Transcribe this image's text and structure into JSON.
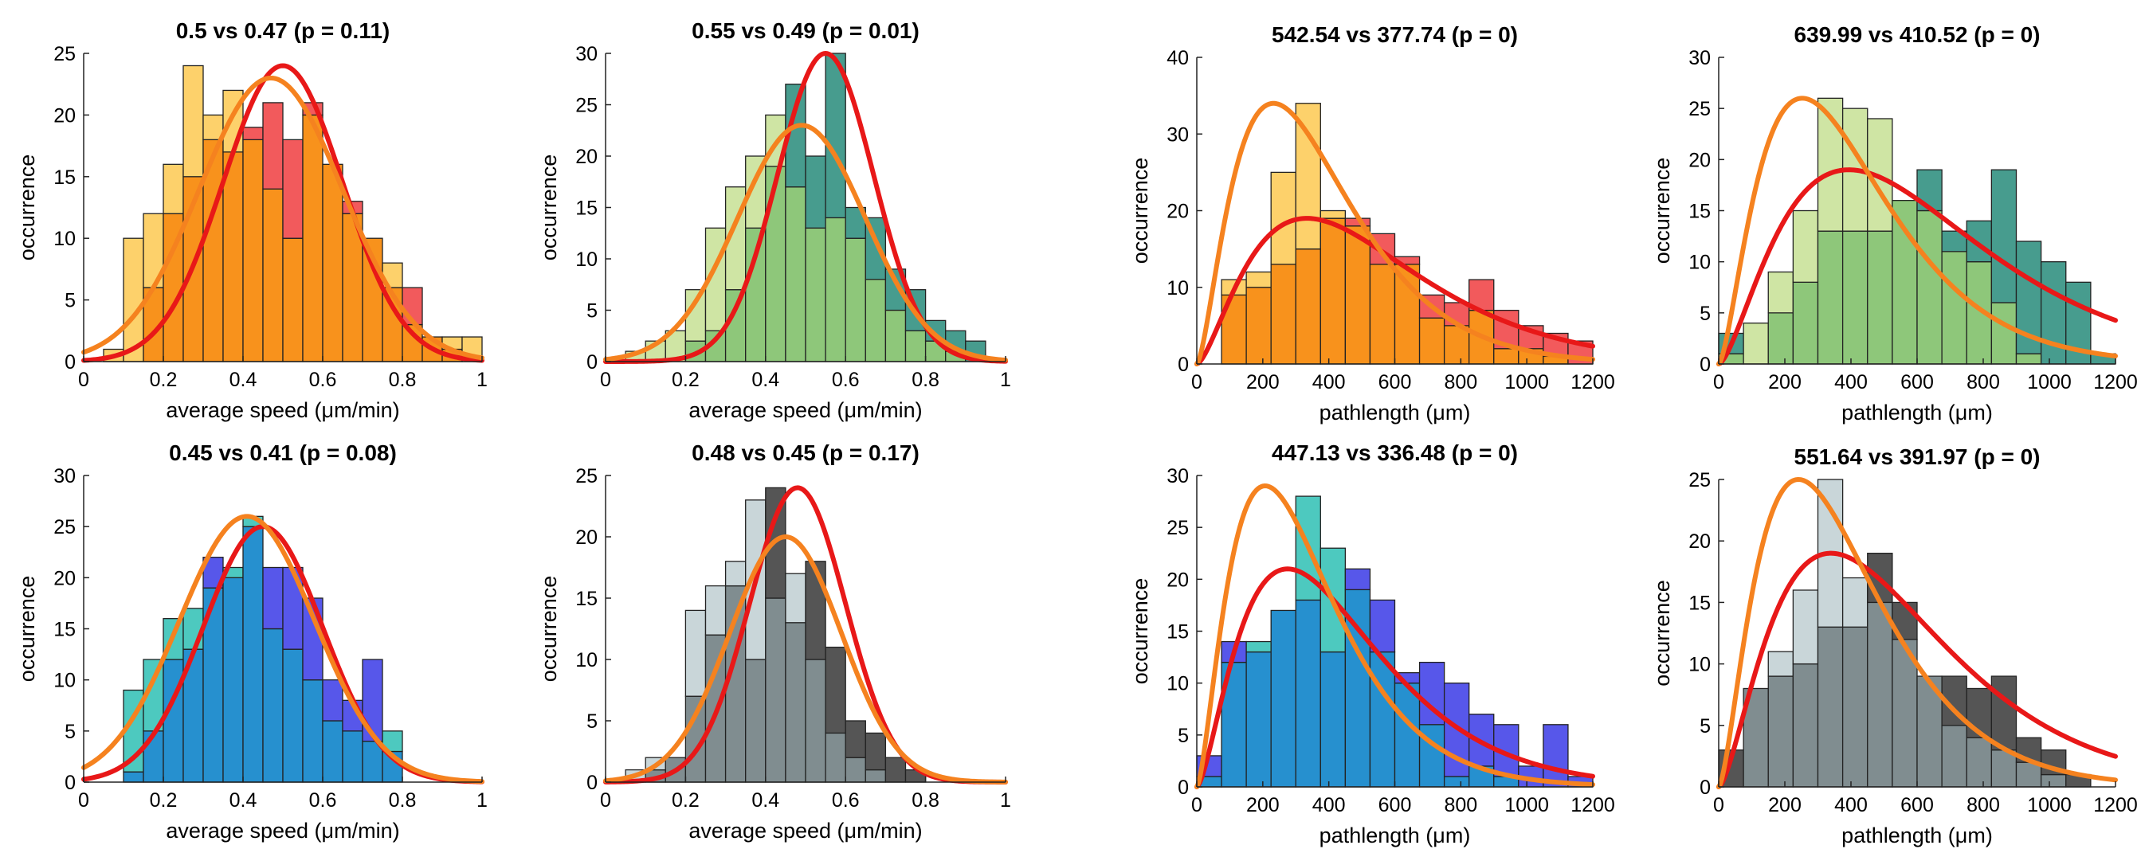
{
  "chart_data": [
    {
      "type": "bar",
      "title": "0.5 vs 0.47 (p = 0.11)",
      "xlabel": "average speed (μm/min)",
      "ylabel": "occurrence",
      "xlim": [
        0,
        1
      ],
      "ylim": [
        0,
        25
      ],
      "xticks": [
        0,
        0.2,
        0.4,
        0.6,
        0.8,
        1
      ],
      "yticks": [
        0,
        5,
        10,
        15,
        20,
        25
      ],
      "bin_edges": [
        0.05,
        0.1,
        0.15,
        0.2,
        0.25,
        0.3,
        0.35,
        0.4,
        0.45,
        0.5,
        0.55,
        0.6,
        0.65,
        0.7,
        0.75,
        0.8,
        0.85,
        0.9,
        0.95,
        1
      ],
      "colors": {
        "a": "#FDD16B",
        "b": "#F25A5C",
        "overlap": "#F8921C"
      },
      "series": [
        {
          "values": [
            1,
            10,
            12,
            16,
            24,
            20,
            22,
            18,
            14,
            10,
            20,
            16,
            12,
            10,
            8,
            3,
            2,
            2,
            2
          ]
        },
        {
          "values": [
            0,
            0,
            6,
            12,
            15,
            18,
            17,
            19,
            21,
            18,
            21,
            16,
            13,
            10,
            6,
            6,
            2,
            1,
            0
          ]
        }
      ],
      "fits": [
        {
          "color": "#E81818",
          "mu": 0.5,
          "peak": 24,
          "sigma": 0.15
        },
        {
          "color": "#F5821F",
          "mu": 0.47,
          "peak": 23,
          "sigma": 0.18
        }
      ]
    },
    {
      "type": "bar",
      "title": "0.55 vs 0.49 (p = 0.01)",
      "xlabel": "average speed (μm/min)",
      "ylabel": "occurrence",
      "xlim": [
        0,
        1
      ],
      "ylim": [
        0,
        30
      ],
      "xticks": [
        0,
        0.2,
        0.4,
        0.6,
        0.8,
        1
      ],
      "yticks": [
        0,
        5,
        10,
        15,
        20,
        25,
        30
      ],
      "bin_edges": [
        0.05,
        0.1,
        0.15,
        0.2,
        0.25,
        0.3,
        0.35,
        0.4,
        0.45,
        0.5,
        0.55,
        0.6,
        0.65,
        0.7,
        0.75,
        0.8,
        0.85,
        0.9,
        0.95,
        1
      ],
      "colors": {
        "a": "#CFE5A4",
        "b": "#479C8E",
        "overlap": "#8EC77A"
      },
      "series": [
        {
          "values": [
            1,
            2,
            3,
            7,
            13,
            17,
            20,
            24,
            17,
            13,
            14,
            12,
            8,
            5,
            3,
            2,
            1,
            0,
            0
          ]
        },
        {
          "values": [
            0,
            0,
            0,
            2,
            3,
            7,
            13,
            19,
            27,
            20,
            30,
            15,
            14,
            9,
            7,
            4,
            3,
            2,
            0
          ]
        }
      ],
      "fits": [
        {
          "color": "#E81818",
          "mu": 0.55,
          "peak": 30,
          "sigma": 0.12
        },
        {
          "color": "#F5821F",
          "mu": 0.49,
          "peak": 23,
          "sigma": 0.16
        }
      ]
    },
    {
      "type": "bar",
      "title": "542.54 vs 377.74 (p = 0)",
      "xlabel": "pathlength (μm)",
      "ylabel": "occurrence",
      "xlim": [
        0,
        1200
      ],
      "ylim": [
        0,
        40
      ],
      "xticks": [
        0,
        200,
        400,
        600,
        800,
        1000,
        1200
      ],
      "yticks": [
        0,
        10,
        20,
        30,
        40
      ],
      "bin_edges": [
        75,
        150,
        225,
        300,
        375,
        450,
        525,
        600,
        675,
        750,
        825,
        900,
        975,
        1050,
        1125,
        1200
      ],
      "colors": {
        "a": "#FDD16B",
        "b": "#F25A5C",
        "overlap": "#F8921C"
      },
      "series": [
        {
          "values": [
            11,
            12,
            25,
            34,
            20,
            18,
            13,
            13,
            6,
            5,
            7,
            2,
            2,
            1,
            0
          ]
        },
        {
          "values": [
            9,
            10,
            13,
            15,
            19,
            19,
            17,
            14,
            9,
            8,
            11,
            7,
            5,
            4,
            3
          ]
        }
      ],
      "fits": [
        {
          "color": "#E81818",
          "mu": 542.54,
          "peak": 19,
          "shape": "gamma"
        },
        {
          "color": "#F5821F",
          "mu": 377.74,
          "peak": 34,
          "shape": "gamma"
        }
      ]
    },
    {
      "type": "bar",
      "title": "639.99 vs 410.52 (p = 0)",
      "xlabel": "pathlength (μm)",
      "ylabel": "occurrence",
      "xlim": [
        0,
        1200
      ],
      "ylim": [
        0,
        30
      ],
      "xticks": [
        0,
        200,
        400,
        600,
        800,
        1000,
        1200
      ],
      "yticks": [
        0,
        5,
        10,
        15,
        20,
        25,
        30
      ],
      "bin_edges": [
        0,
        75,
        150,
        225,
        300,
        375,
        450,
        525,
        600,
        675,
        750,
        825,
        900,
        975,
        1050,
        1125,
        1200
      ],
      "colors": {
        "a": "#CFE5A4",
        "b": "#479C8E",
        "overlap": "#8EC77A"
      },
      "series": [
        {
          "values": [
            1,
            4,
            9,
            15,
            26,
            25,
            24,
            16,
            15,
            11,
            10,
            6,
            1,
            0,
            0,
            0
          ]
        },
        {
          "values": [
            3,
            0,
            5,
            8,
            13,
            13,
            13,
            16,
            19,
            13,
            14,
            19,
            12,
            10,
            8,
            1
          ]
        }
      ],
      "fits": [
        {
          "color": "#E81818",
          "mu": 639.99,
          "peak": 19,
          "shape": "gamma"
        },
        {
          "color": "#F5821F",
          "mu": 410.52,
          "peak": 26,
          "shape": "gamma"
        }
      ]
    },
    {
      "type": "bar",
      "title": "0.45 vs 0.41 (p = 0.08)",
      "xlabel": "average speed (μm/min)",
      "ylabel": "occurrence",
      "xlim": [
        0,
        1
      ],
      "ylim": [
        0,
        30
      ],
      "xticks": [
        0,
        0.2,
        0.4,
        0.6,
        0.8,
        1
      ],
      "yticks": [
        0,
        5,
        10,
        15,
        20,
        25,
        30
      ],
      "bin_edges": [
        0.05,
        0.1,
        0.15,
        0.2,
        0.25,
        0.3,
        0.35,
        0.4,
        0.45,
        0.5,
        0.55,
        0.6,
        0.65,
        0.7,
        0.75,
        0.8,
        0.85,
        0.9,
        0.95,
        1
      ],
      "colors": {
        "a": "#4DC9BF",
        "b": "#5757EA",
        "overlap": "#2690CF"
      },
      "series": [
        {
          "values": [
            0,
            9,
            12,
            16,
            17,
            19,
            21,
            26,
            15,
            13,
            10,
            6,
            5,
            4,
            5,
            0,
            0,
            0,
            0
          ]
        },
        {
          "values": [
            0,
            1,
            5,
            12,
            13,
            22,
            20,
            25,
            21,
            21,
            18,
            10,
            8,
            12,
            3,
            0,
            0,
            0,
            0
          ]
        }
      ],
      "fits": [
        {
          "color": "#E81818",
          "mu": 0.45,
          "peak": 25,
          "sigma": 0.15
        },
        {
          "color": "#F5821F",
          "mu": 0.41,
          "peak": 26,
          "sigma": 0.17
        }
      ]
    },
    {
      "type": "bar",
      "title": "0.48 vs 0.45 (p = 0.17)",
      "xlabel": "average speed (μm/min)",
      "ylabel": "occurrence",
      "xlim": [
        0,
        1
      ],
      "ylim": [
        0,
        25
      ],
      "xticks": [
        0,
        0.2,
        0.4,
        0.6,
        0.8,
        1
      ],
      "yticks": [
        0,
        5,
        10,
        15,
        20,
        25
      ],
      "bin_edges": [
        0.05,
        0.1,
        0.15,
        0.2,
        0.25,
        0.3,
        0.35,
        0.4,
        0.45,
        0.5,
        0.55,
        0.6,
        0.65,
        0.7,
        0.75,
        0.8,
        0.85,
        0.9,
        0.95,
        1
      ],
      "colors": {
        "a": "#C9D6D9",
        "b": "#555555",
        "overlap": "#808D90"
      },
      "series": [
        {
          "values": [
            1,
            2,
            2,
            14,
            16,
            18,
            23,
            15,
            17,
            10,
            4,
            2,
            1,
            0,
            0,
            0,
            0,
            0,
            0
          ]
        },
        {
          "values": [
            0,
            1,
            2,
            7,
            12,
            16,
            10,
            24,
            13,
            18,
            11,
            5,
            4,
            2,
            1,
            0,
            0,
            0,
            0
          ]
        }
      ],
      "fits": [
        {
          "color": "#E81818",
          "mu": 0.48,
          "peak": 24,
          "sigma": 0.12
        },
        {
          "color": "#F5821F",
          "mu": 0.45,
          "peak": 20,
          "sigma": 0.14
        }
      ]
    },
    {
      "type": "bar",
      "title": "447.13 vs 336.48 (p = 0)",
      "xlabel": "pathlength (μm)",
      "ylabel": "occurrence",
      "xlim": [
        0,
        1200
      ],
      "ylim": [
        0,
        30
      ],
      "xticks": [
        0,
        200,
        400,
        600,
        800,
        1000,
        1200
      ],
      "yticks": [
        0,
        5,
        10,
        15,
        20,
        25,
        30
      ],
      "bin_edges": [
        0,
        75,
        150,
        225,
        300,
        375,
        450,
        525,
        600,
        675,
        750,
        825,
        900,
        975,
        1050,
        1125,
        1200
      ],
      "colors": {
        "a": "#4DC9BF",
        "b": "#5757EA",
        "overlap": "#2690CF"
      },
      "series": [
        {
          "values": [
            1,
            12,
            14,
            17,
            28,
            23,
            19,
            13,
            10,
            6,
            1,
            2,
            1,
            0,
            0,
            0
          ]
        },
        {
          "values": [
            3,
            14,
            13,
            17,
            18,
            13,
            21,
            18,
            11,
            12,
            10,
            7,
            6,
            2,
            6,
            1
          ]
        }
      ],
      "fits": [
        {
          "color": "#E81818",
          "mu": 447.13,
          "peak": 21,
          "shape": "gamma"
        },
        {
          "color": "#F5821F",
          "mu": 336.48,
          "peak": 29,
          "shape": "gamma"
        }
      ]
    },
    {
      "type": "bar",
      "title": "551.64 vs 391.97 (p = 0)",
      "xlabel": "pathlength (μm)",
      "ylabel": "occurrence",
      "xlim": [
        0,
        1200
      ],
      "ylim": [
        0,
        25
      ],
      "xticks": [
        0,
        200,
        400,
        600,
        800,
        1000,
        1200
      ],
      "yticks": [
        0,
        5,
        10,
        15,
        20,
        25
      ],
      "bin_edges": [
        0,
        75,
        150,
        225,
        300,
        375,
        450,
        525,
        600,
        675,
        750,
        825,
        900,
        975,
        1050,
        1125,
        1200
      ],
      "colors": {
        "a": "#C9D6D9",
        "b": "#555555",
        "overlap": "#808D90"
      },
      "series": [
        {
          "values": [
            0,
            8,
            11,
            16,
            25,
            17,
            15,
            12,
            9,
            5,
            4,
            3,
            2,
            1,
            0,
            0
          ]
        },
        {
          "values": [
            3,
            8,
            9,
            10,
            13,
            13,
            19,
            15,
            9,
            9,
            8,
            9,
            4,
            3,
            1,
            0
          ]
        }
      ],
      "fits": [
        {
          "color": "#E81818",
          "mu": 551.64,
          "peak": 19,
          "shape": "gamma"
        },
        {
          "color": "#F5821F",
          "mu": 391.97,
          "peak": 25,
          "shape": "gamma"
        }
      ]
    }
  ]
}
